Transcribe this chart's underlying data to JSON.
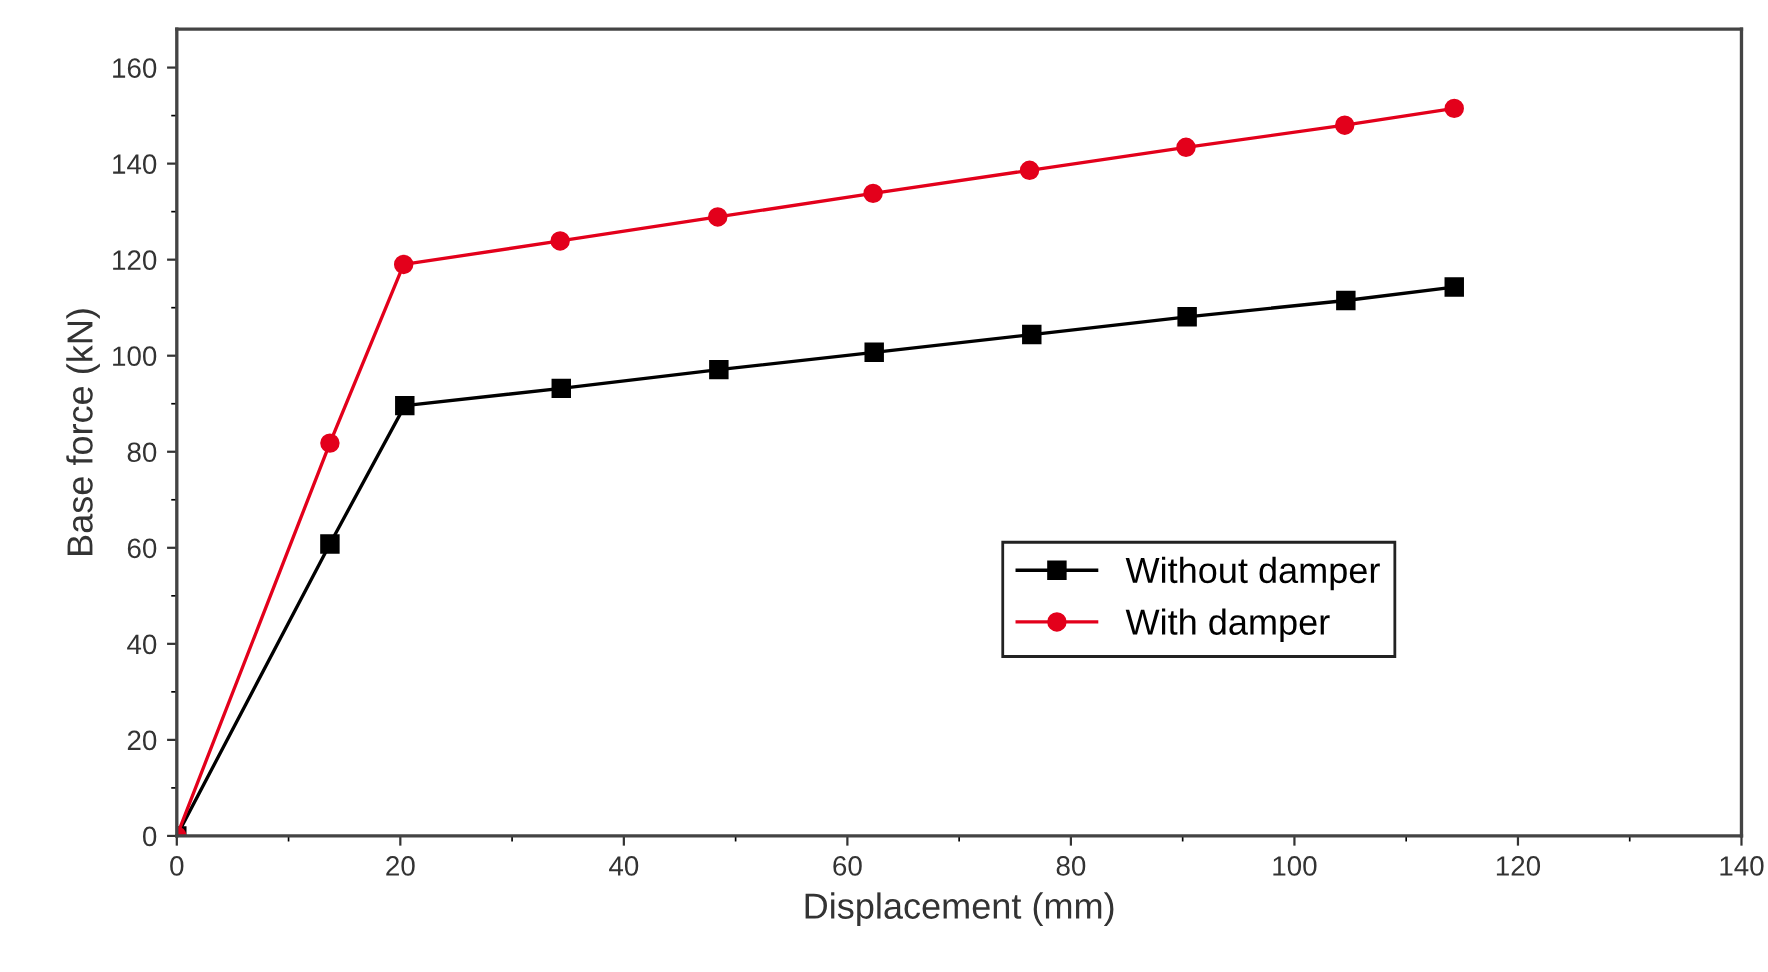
{
  "chart_data": {
    "type": "line",
    "xlabel": "Displacement (mm)",
    "ylabel": "Base force (kN)",
    "xlim": [
      0,
      140
    ],
    "xticks": [
      0,
      20,
      40,
      60,
      80,
      100,
      120,
      140
    ],
    "ylim": [
      0,
      168
    ],
    "yticks": [
      0,
      20,
      40,
      60,
      80,
      100,
      120,
      140,
      160
    ],
    "grid": false,
    "legend": "bottom right",
    "line_style": "solid",
    "series": [
      {
        "name": "Without damper",
        "color": "#000000",
        "marker": "square",
        "x": [
          0,
          13.7,
          20.4,
          34.4,
          48.5,
          62.4,
          76.5,
          90.4,
          104.6,
          114.3
        ],
        "values": [
          0,
          60.8,
          89.6,
          93.2,
          97.1,
          100.7,
          104.4,
          108.1,
          111.5,
          114.3
        ]
      },
      {
        "name": "With damper",
        "color": "#e3001b",
        "marker": "circle",
        "x": [
          0,
          13.7,
          20.3,
          34.3,
          48.4,
          62.3,
          76.3,
          90.3,
          104.5,
          114.3
        ],
        "values": [
          0,
          81.8,
          119,
          123.9,
          128.9,
          133.8,
          138.6,
          143.4,
          148,
          151.5
        ]
      }
    ]
  }
}
